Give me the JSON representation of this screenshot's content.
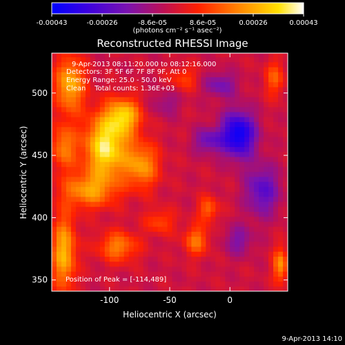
{
  "chart_data": {
    "type": "heatmap",
    "title": "Reconstructed RHESSI Image",
    "xlabel": "Heliocentric X (arcsec)",
    "ylabel": "Heliocentric Y (arcsec)",
    "xlim": [
      -148,
      48
    ],
    "ylim": [
      341,
      532
    ],
    "x_ticks": [
      {
        "value": -100,
        "label": "-100"
      },
      {
        "value": -50,
        "label": "-50"
      },
      {
        "value": 0,
        "label": "0"
      }
    ],
    "y_ticks": [
      {
        "value": 350,
        "label": "350"
      },
      {
        "value": 400,
        "label": "400"
      },
      {
        "value": 450,
        "label": "450"
      },
      {
        "value": 500,
        "label": "500"
      }
    ],
    "colorbar": {
      "range": [
        -0.00043,
        0.00043
      ],
      "units": "(photons cm⁻² s⁻¹ asec⁻²)",
      "tick_labels": [
        "-0.00043",
        "-0.00026",
        "-8.6e-05",
        "8.6e-05",
        "0.00026",
        "0.00043"
      ],
      "colors": [
        "#0000ff",
        "#3b00e0",
        "#7a12b0",
        "#c01050",
        "#ff2000",
        "#ff8a00",
        "#ffe000",
        "#ffffff"
      ]
    },
    "annotations": [
      "9-Apr-2013 08:11:20.000 to 08:12:16.000",
      "Detectors: 3F 5F 6F 7F 8F 9F, Att 0",
      "Energy Range: 25.0 - 50.0 keV",
      "Clean    Total counts: 1.36E+03",
      "Position of Peak = [-114,489]"
    ],
    "peak": {
      "x": -114,
      "y": 489
    },
    "footer_timestamp": "9-Apr-2013 14:10",
    "background": "#000000",
    "axis_color": "#ffffff"
  }
}
